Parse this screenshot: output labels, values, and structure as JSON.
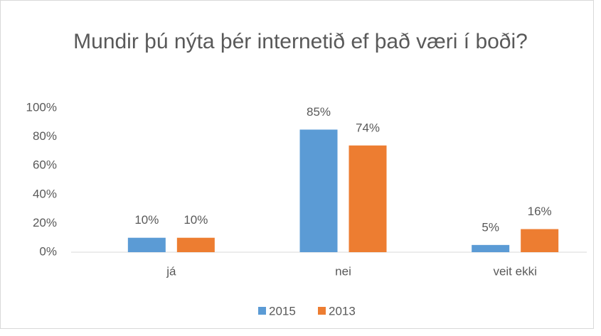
{
  "chart_data": {
    "type": "bar",
    "title": "Mundir þú nýta þér internetið ef það væri í boði?",
    "categories": [
      "já",
      "nei",
      "veit ekki"
    ],
    "series": [
      {
        "name": "2015",
        "color": "#5b9bd5",
        "values": [
          10,
          85,
          5
        ],
        "value_labels": [
          "10%",
          "85%",
          "5%"
        ]
      },
      {
        "name": "2013",
        "color": "#ed7d31",
        "values": [
          10,
          74,
          16
        ],
        "value_labels": [
          "10%",
          "74%",
          "16%"
        ]
      }
    ],
    "ylim": [
      0,
      100
    ],
    "yticks": [
      {
        "value": 0,
        "label": "0%"
      },
      {
        "value": 20,
        "label": "20%"
      },
      {
        "value": 40,
        "label": "40%"
      },
      {
        "value": 60,
        "label": "60%"
      },
      {
        "value": 80,
        "label": "80%"
      },
      {
        "value": 100,
        "label": "100%"
      }
    ],
    "grid": false,
    "legend": "bottom"
  }
}
